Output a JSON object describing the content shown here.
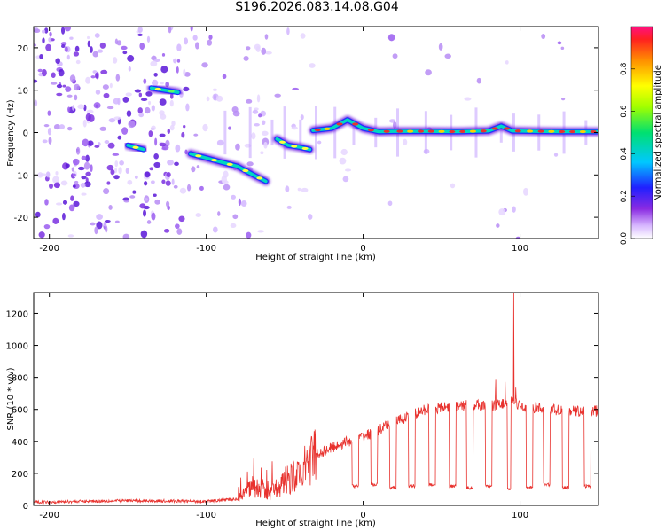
{
  "figure": {
    "title": "S196.2026.083.14.08.G04"
  },
  "colors": {
    "snr_line": "#e8322e",
    "spectrogram_scatter": "#7a30e0",
    "ridge": "#e8322e"
  },
  "chart_data": [
    {
      "type": "heatmap",
      "name": "spectrogram",
      "xlabel": "Height of straight line (km)",
      "ylabel": "Frequency (Hz)",
      "xlim": [
        -210,
        150
      ],
      "ylim": [
        -25,
        25
      ],
      "xticks": [
        -200,
        -100,
        0,
        100
      ],
      "yticks": [
        -20,
        -10,
        0,
        10,
        20
      ],
      "ridge_segments": [
        {
          "x": [
            -150,
            -140
          ],
          "y": [
            -3,
            -4
          ]
        },
        {
          "x": [
            -135,
            -118
          ],
          "y": [
            10.5,
            9.5
          ]
        },
        {
          "x": [
            -110,
            -100,
            -90,
            -80,
            -70,
            -62
          ],
          "y": [
            -5,
            -6,
            -7,
            -8,
            -10,
            -11.5
          ]
        },
        {
          "x": [
            -55,
            -48,
            -40,
            -34
          ],
          "y": [
            -1.5,
            -3,
            -3.5,
            -4
          ]
        },
        {
          "x": [
            -32,
            -20,
            -10,
            0,
            10,
            20,
            40,
            60,
            80,
            88,
            95,
            110,
            130,
            150
          ],
          "y": [
            0.5,
            1,
            3,
            1,
            0.2,
            0.3,
            0.3,
            0.2,
            0.4,
            1.5,
            0.4,
            0.3,
            0.2,
            0.2
          ]
        }
      ],
      "colorbar": {
        "label": "Normalized spectral amplitude",
        "range": [
          0,
          1
        ],
        "ticks": [
          0.0,
          0.2,
          0.4,
          0.6,
          0.8
        ]
      }
    },
    {
      "type": "line",
      "name": "snr",
      "xlabel": "Height of straight line (km)",
      "ylabel": "SNR (10 * v/v)",
      "xlim": [
        -210,
        150
      ],
      "ylim": [
        0,
        1330
      ],
      "xticks": [
        -200,
        -100,
        0,
        100
      ],
      "yticks": [
        0,
        200,
        400,
        600,
        800,
        1000,
        1200
      ],
      "series": [
        {
          "name": "SNR",
          "breakpoints": {
            "x": [
              -210,
              -150,
              -100,
              -80,
              -70,
              -60,
              -50,
              -40,
              -30,
              -20,
              -10,
              0,
              10,
              20,
              30,
              40,
              50,
              60,
              70,
              80,
              90,
              95,
              100,
              110,
              120,
              130,
              140,
              150
            ],
            "y": [
              20,
              30,
              25,
              40,
              120,
              70,
              150,
              200,
              320,
              360,
              400,
              430,
              470,
              520,
              560,
              600,
              610,
              620,
              630,
              620,
              640,
              650,
              620,
              610,
              600,
              590,
              590,
              590
            ]
          },
          "spike": {
            "x": 96,
            "y": 1330
          },
          "dropouts": [
            {
              "x": [
                -7,
                -3
              ],
              "y": 120
            },
            {
              "x": [
                5,
                9
              ],
              "y": 130
            },
            {
              "x": [
                17,
                21
              ],
              "y": 110
            },
            {
              "x": [
                29,
                33
              ],
              "y": 120
            },
            {
              "x": [
                42,
                46
              ],
              "y": 130
            },
            {
              "x": [
                55,
                59
              ],
              "y": 120
            },
            {
              "x": [
                66,
                70
              ],
              "y": 110
            },
            {
              "x": [
                78,
                82
              ],
              "y": 120
            },
            {
              "x": [
                92,
                94
              ],
              "y": 100
            },
            {
              "x": [
                104,
                108
              ],
              "y": 110
            },
            {
              "x": [
                115,
                119
              ],
              "y": 130
            },
            {
              "x": [
                127,
                131
              ],
              "y": 110
            },
            {
              "x": [
                141,
                145
              ],
              "y": 120
            }
          ]
        }
      ]
    }
  ]
}
